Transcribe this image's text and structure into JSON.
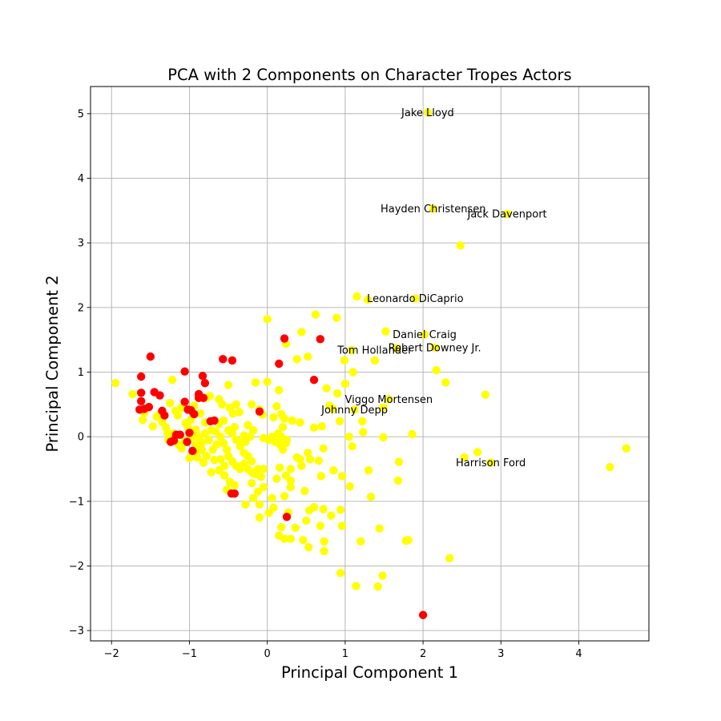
{
  "chart_data": {
    "type": "scatter",
    "title": "PCA with 2 Components on Character Tropes Actors",
    "xlabel": "Principal Component 1",
    "ylabel": "Principal Component 2",
    "xlim": [
      -2.27,
      4.9
    ],
    "ylim": [
      -3.16,
      5.42
    ],
    "x_ticks": [
      -2,
      -1,
      0,
      1,
      2,
      3,
      4
    ],
    "y_ticks": [
      -3,
      -2,
      -1,
      0,
      1,
      2,
      3,
      4,
      5
    ],
    "x_tick_labels": [
      "−2",
      "−1",
      "0",
      "1",
      "2",
      "3",
      "4"
    ],
    "y_tick_labels": [
      "−3",
      "−2",
      "−1",
      "0",
      "1",
      "2",
      "3",
      "4",
      "5"
    ],
    "grid": true,
    "colors": {
      "group_a": "#ffff00",
      "group_b": "#ff0000"
    },
    "series": [
      {
        "color": "#ffff00",
        "points": [
          [
            2.06,
            5.02
          ],
          [
            2.13,
            3.53
          ],
          [
            3.08,
            3.45
          ],
          [
            2.48,
            2.96
          ],
          [
            1.15,
            2.17
          ],
          [
            1.29,
            2.12
          ],
          [
            1.9,
            2.14
          ],
          [
            0.62,
            1.89
          ],
          [
            0.89,
            1.84
          ],
          [
            0.0,
            1.82
          ],
          [
            0.44,
            1.62
          ],
          [
            1.52,
            1.63
          ],
          [
            2.02,
            1.58
          ],
          [
            0.24,
            1.44
          ],
          [
            1.08,
            1.34
          ],
          [
            1.66,
            1.37
          ],
          [
            2.15,
            1.38
          ],
          [
            0.38,
            1.2
          ],
          [
            0.52,
            1.24
          ],
          [
            0.99,
            1.18
          ],
          [
            1.38,
            1.18
          ],
          [
            2.17,
            1.03
          ],
          [
            1.1,
            1.0
          ],
          [
            2.29,
            0.84
          ],
          [
            1.0,
            0.82
          ],
          [
            0.76,
            0.75
          ],
          [
            0.9,
            0.67
          ],
          [
            2.8,
            0.65
          ],
          [
            1.56,
            0.58
          ],
          [
            0.8,
            0.48
          ],
          [
            0.84,
            0.43
          ],
          [
            1.12,
            0.42
          ],
          [
            1.49,
            0.45
          ],
          [
            0.93,
            0.24
          ],
          [
            1.22,
            0.24
          ],
          [
            0.6,
            0.14
          ],
          [
            0.7,
            0.16
          ],
          [
            1.23,
            0.07
          ],
          [
            1.05,
            0.0
          ],
          [
            1.49,
            -0.01
          ],
          [
            1.86,
            0.04
          ],
          [
            1.09,
            -0.15
          ],
          [
            0.72,
            -0.18
          ],
          [
            0.66,
            -0.37
          ],
          [
            1.69,
            -0.39
          ],
          [
            1.3,
            -0.52
          ],
          [
            0.85,
            -0.52
          ],
          [
            0.69,
            -0.61
          ],
          [
            0.96,
            -0.61
          ],
          [
            1.06,
            -0.77
          ],
          [
            1.68,
            -0.68
          ],
          [
            1.33,
            -0.93
          ],
          [
            0.48,
            -0.84
          ],
          [
            0.72,
            -1.12
          ],
          [
            0.94,
            -1.13
          ],
          [
            0.54,
            -1.14
          ],
          [
            0.6,
            -1.09
          ],
          [
            0.82,
            -1.22
          ],
          [
            0.5,
            -1.3
          ],
          [
            0.68,
            -1.38
          ],
          [
            0.96,
            -1.38
          ],
          [
            0.36,
            -1.41
          ],
          [
            1.44,
            -1.42
          ],
          [
            0.3,
            -1.58
          ],
          [
            0.46,
            -1.6
          ],
          [
            0.73,
            -1.62
          ],
          [
            1.2,
            -1.62
          ],
          [
            1.78,
            -1.61
          ],
          [
            1.81,
            -1.6
          ],
          [
            0.53,
            -1.71
          ],
          [
            0.73,
            -1.77
          ],
          [
            2.34,
            -1.88
          ],
          [
            0.94,
            -2.11
          ],
          [
            1.48,
            -2.15
          ],
          [
            1.14,
            -2.31
          ],
          [
            1.42,
            -2.32
          ],
          [
            2.53,
            -0.32
          ],
          [
            2.7,
            -0.24
          ],
          [
            2.87,
            -0.4
          ],
          [
            4.61,
            -0.18
          ],
          [
            4.4,
            -0.47
          ],
          [
            0.27,
            -1.17
          ],
          [
            -1.95,
            0.83
          ],
          [
            -1.73,
            0.66
          ],
          [
            -1.6,
            0.26
          ],
          [
            -1.58,
            0.37
          ],
          [
            -1.47,
            0.16
          ],
          [
            -1.42,
            0.31
          ],
          [
            -1.35,
            0.23
          ],
          [
            -1.3,
            0.14
          ],
          [
            -1.25,
            0.52
          ],
          [
            -1.22,
            0.88
          ],
          [
            -1.15,
            0.33
          ],
          [
            -1.1,
            0.45
          ],
          [
            -1.05,
            0.21
          ],
          [
            -1.02,
            0.14
          ],
          [
            -0.98,
            0.26
          ],
          [
            -0.92,
            0.11
          ],
          [
            -0.88,
            0.0
          ],
          [
            -0.84,
            -0.09
          ],
          [
            -0.78,
            -0.3
          ],
          [
            -0.74,
            0.63
          ],
          [
            -0.68,
            -0.36
          ],
          [
            -0.62,
            0.58
          ],
          [
            -0.58,
            0.5
          ],
          [
            -0.5,
            0.8
          ],
          [
            -0.48,
            0.45
          ],
          [
            -0.44,
            0.36
          ],
          [
            -0.4,
            0.5
          ],
          [
            -0.36,
            0.38
          ],
          [
            -0.6,
            0.0
          ],
          [
            -0.56,
            -0.1
          ],
          [
            -0.52,
            -0.2
          ],
          [
            -0.5,
            0.1
          ],
          [
            -0.45,
            0.05
          ],
          [
            -0.4,
            -0.05
          ],
          [
            -0.35,
            -0.15
          ],
          [
            -0.3,
            -0.25
          ],
          [
            -0.25,
            -0.3
          ],
          [
            -0.6,
            -0.35
          ],
          [
            -0.55,
            -0.45
          ],
          [
            -0.5,
            -0.3
          ],
          [
            -0.45,
            -0.38
          ],
          [
            -0.4,
            -0.45
          ],
          [
            -0.35,
            -0.5
          ],
          [
            -0.3,
            -0.42
          ],
          [
            -0.25,
            -0.5
          ],
          [
            -0.2,
            -0.38
          ],
          [
            -0.7,
            -0.2
          ],
          [
            -0.65,
            -0.12
          ],
          [
            -0.72,
            0.1
          ],
          [
            -0.8,
            0.22
          ],
          [
            -0.86,
            0.36
          ],
          [
            -0.94,
            0.48
          ],
          [
            -1.0,
            0.02
          ],
          [
            -1.06,
            -0.08
          ],
          [
            -1.1,
            -0.18
          ],
          [
            -1.0,
            -0.33
          ],
          [
            -0.9,
            -0.22
          ],
          [
            -0.82,
            -0.4
          ],
          [
            -0.72,
            -0.55
          ],
          [
            -0.62,
            -0.52
          ],
          [
            -0.55,
            -0.6
          ],
          [
            -0.48,
            -0.7
          ],
          [
            -0.42,
            -0.75
          ],
          [
            -0.52,
            -0.82
          ],
          [
            -0.2,
            -0.55
          ],
          [
            -0.15,
            -0.58
          ],
          [
            -0.12,
            -0.5
          ],
          [
            -0.08,
            -0.62
          ],
          [
            -0.05,
            -0.5
          ],
          [
            -0.2,
            -0.72
          ],
          [
            -0.12,
            -0.85
          ],
          [
            -0.05,
            -0.78
          ],
          [
            -0.28,
            -1.05
          ],
          [
            -0.18,
            -0.95
          ],
          [
            -0.1,
            -1.05
          ],
          [
            0.06,
            -0.95
          ],
          [
            0.08,
            -1.1
          ],
          [
            0.02,
            -1.18
          ],
          [
            -0.1,
            -1.25
          ],
          [
            0.18,
            -1.4
          ],
          [
            0.22,
            -1.58
          ],
          [
            0.15,
            -1.53
          ],
          [
            -0.15,
            0.84
          ],
          [
            -0.2,
            0.5
          ],
          [
            -0.1,
            0.42
          ],
          [
            -0.06,
            0.34
          ],
          [
            0.0,
            0.85
          ],
          [
            0.15,
            0.72
          ],
          [
            0.12,
            0.47
          ],
          [
            0.08,
            0.3
          ],
          [
            0.18,
            0.35
          ],
          [
            0.22,
            0.28
          ],
          [
            0.32,
            0.25
          ],
          [
            0.42,
            0.22
          ],
          [
            0.2,
            0.15
          ],
          [
            0.14,
            0.05
          ],
          [
            0.25,
            -0.05
          ],
          [
            -0.05,
            -0.02
          ],
          [
            0.02,
            -0.05
          ],
          [
            0.06,
            0.0
          ],
          [
            0.1,
            -0.08
          ],
          [
            0.16,
            -0.12
          ],
          [
            0.2,
            -0.2
          ],
          [
            0.24,
            -0.1
          ],
          [
            0.3,
            -0.5
          ],
          [
            0.38,
            -0.32
          ],
          [
            0.44,
            -0.45
          ],
          [
            0.52,
            -0.25
          ],
          [
            0.55,
            -0.35
          ],
          [
            0.16,
            -0.48
          ],
          [
            0.12,
            -0.65
          ],
          [
            0.24,
            -0.6
          ],
          [
            0.3,
            -0.68
          ],
          [
            0.3,
            -0.78
          ],
          [
            0.22,
            -0.92
          ],
          [
            0.42,
            -0.35
          ],
          [
            0.18,
            -0.0
          ],
          [
            -0.22,
            0.0
          ],
          [
            -0.3,
            0.02
          ],
          [
            -0.36,
            -0.08
          ],
          [
            -0.42,
            0.15
          ],
          [
            -0.48,
            0.08
          ],
          [
            -0.28,
            -0.08
          ],
          [
            -0.25,
            0.18
          ],
          [
            -0.18,
            0.1
          ],
          [
            -0.62,
            0.2
          ],
          [
            -0.56,
            0.25
          ],
          [
            -0.66,
            0.08
          ],
          [
            -0.75,
            -0.05
          ],
          [
            -0.8,
            0.05
          ],
          [
            -0.84,
            -0.2
          ],
          [
            -0.9,
            -0.32
          ],
          [
            -0.92,
            -0.12
          ],
          [
            -0.96,
            -0.0
          ],
          [
            -1.14,
            -0.12
          ],
          [
            -1.2,
            0.05
          ],
          [
            -1.27,
            -0.05
          ],
          [
            -1.28,
            0.05
          ],
          [
            -0.78,
            0.6
          ],
          [
            -1.18,
            0.4
          ],
          [
            -1.38,
            0.35
          ]
        ]
      },
      {
        "color": "#ff0000",
        "points": [
          [
            -1.5,
            1.24
          ],
          [
            -1.62,
            0.93
          ],
          [
            -1.62,
            0.68
          ],
          [
            -1.45,
            0.69
          ],
          [
            -1.38,
            0.64
          ],
          [
            -1.62,
            0.55
          ],
          [
            -1.52,
            0.46
          ],
          [
            -1.64,
            0.42
          ],
          [
            -1.58,
            0.43
          ],
          [
            -1.35,
            0.4
          ],
          [
            -1.32,
            0.33
          ],
          [
            -1.06,
            1.01
          ],
          [
            -0.83,
            0.94
          ],
          [
            -0.8,
            0.83
          ],
          [
            -0.88,
            0.66
          ],
          [
            -0.88,
            0.6
          ],
          [
            -0.82,
            0.6
          ],
          [
            -1.06,
            0.54
          ],
          [
            -1.02,
            0.42
          ],
          [
            -0.98,
            0.41
          ],
          [
            -0.94,
            0.35
          ],
          [
            -0.73,
            0.24
          ],
          [
            -0.68,
            0.25
          ],
          [
            -1.17,
            0.03
          ],
          [
            -1.12,
            0.03
          ],
          [
            -1.24,
            -0.08
          ],
          [
            -1.2,
            -0.06
          ],
          [
            -1.0,
            0.06
          ],
          [
            -1.03,
            -0.08
          ],
          [
            -0.96,
            -0.22
          ],
          [
            -0.57,
            1.2
          ],
          [
            -0.45,
            1.18
          ],
          [
            0.22,
            1.52
          ],
          [
            0.68,
            1.51
          ],
          [
            0.15,
            1.13
          ],
          [
            0.6,
            0.88
          ],
          [
            -0.1,
            0.39
          ],
          [
            -0.46,
            -0.88
          ],
          [
            -0.42,
            -0.88
          ],
          [
            0.25,
            -1.24
          ],
          [
            2.0,
            -2.76
          ]
        ]
      }
    ],
    "annotations": [
      {
        "text": "Jake Lloyd",
        "x": 2.06,
        "y": 5.02
      },
      {
        "text": "Hayden Christensen",
        "x": 2.13,
        "y": 3.53
      },
      {
        "text": "Jack Davenport",
        "x": 3.08,
        "y": 3.45
      },
      {
        "text": "Leonardo DiCaprio",
        "x": 1.9,
        "y": 2.14
      },
      {
        "text": "Daniel Craig",
        "x": 2.02,
        "y": 1.58
      },
      {
        "text": "Tom Hollander",
        "x": 1.38,
        "y": 1.34
      },
      {
        "text": "Robert Downey Jr.",
        "x": 2.15,
        "y": 1.38
      },
      {
        "text": "Viggo Mortensen",
        "x": 1.56,
        "y": 0.58
      },
      {
        "text": "Johnny Depp",
        "x": 1.12,
        "y": 0.42
      },
      {
        "text": "Harrison Ford",
        "x": 2.87,
        "y": -0.4
      }
    ]
  }
}
